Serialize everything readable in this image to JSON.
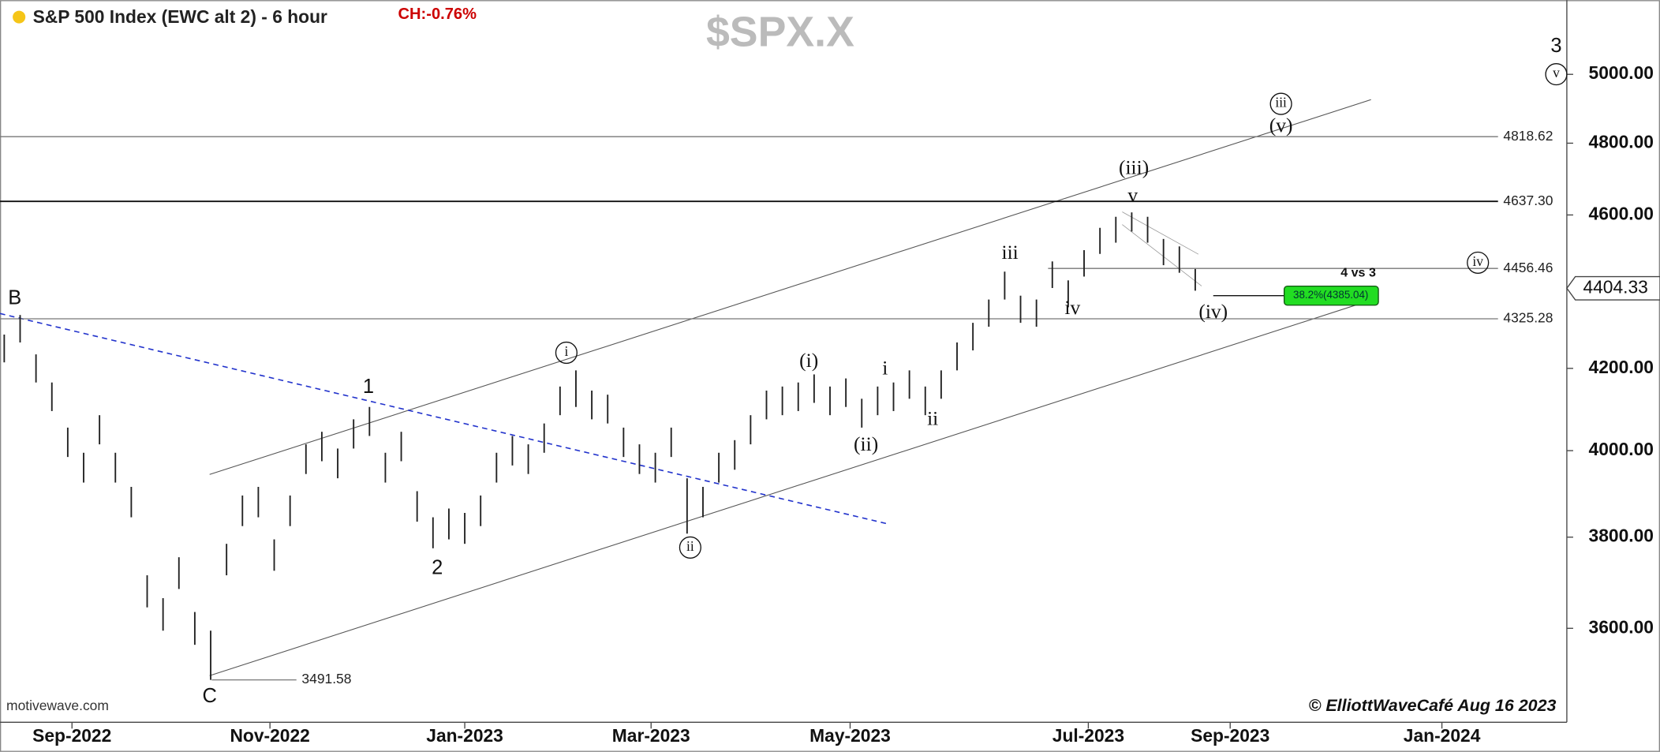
{
  "chart_data": {
    "type": "ohlc",
    "title": "S&P 500 Index (EWC alt 2) - 6 hour",
    "change": "CH:-0.76%",
    "watermark": "$SPX.X",
    "source": "motivewave.com",
    "copyright": "© ElliottWaveCafé Aug 16 2023",
    "log_scale": true,
    "ylim": [
      3405,
      5225
    ],
    "yticks": [
      {
        "value": 3600,
        "label": "3600.00"
      },
      {
        "value": 3800,
        "label": "3800.00"
      },
      {
        "value": 4000,
        "label": "4000.00"
      },
      {
        "value": 4200,
        "label": "4200.00"
      },
      {
        "value": 4600,
        "label": "4600.00"
      },
      {
        "value": 4800,
        "label": "4800.00"
      },
      {
        "value": 5000,
        "label": "5000.00"
      }
    ],
    "xticks": [
      "Sep-2022",
      "Nov-2022",
      "Jan-2023",
      "Mar-2023",
      "May-2023",
      "Jul-2023",
      "Sep-2023",
      "Jan-2024"
    ],
    "color": "#222222",
    "high": [
      4285,
      4335,
      4235,
      4165,
      4055,
      3995,
      4085,
      3995,
      3915,
      3715,
      3665,
      3755,
      3635,
      3595,
      3785,
      3895,
      3915,
      3795,
      3895,
      4015,
      4045,
      4005,
      4075,
      4105,
      3995,
      4045,
      3905,
      3845,
      3865,
      3855,
      3895,
      3995,
      4035,
      4015,
      4065,
      4155,
      4195,
      4145,
      4135,
      4055,
      4015,
      3995,
      4055,
      3935,
      3915,
      3995,
      4025,
      4085,
      4145,
      4155,
      4165,
      4185,
      4155,
      4175,
      4125,
      4155,
      4165,
      4195,
      4155,
      4195,
      4265,
      4315,
      4375,
      4448,
      4385,
      4375,
      4475,
      4425,
      4505,
      4565,
      4595,
      4607,
      4595,
      4535,
      4515,
      4455
    ],
    "low": [
      4215,
      4265,
      4165,
      4095,
      3985,
      3925,
      4015,
      3925,
      3845,
      3645,
      3595,
      3685,
      3565,
      3491.58,
      3715,
      3825,
      3845,
      3725,
      3825,
      3945,
      3975,
      3935,
      4005,
      4035,
      3925,
      3975,
      3835,
      3775,
      3795,
      3785,
      3825,
      3925,
      3965,
      3945,
      3995,
      4085,
      4105,
      4075,
      4065,
      3985,
      3945,
      3925,
      3985,
      3808,
      3845,
      3925,
      3955,
      4015,
      4075,
      4085,
      4095,
      4115,
      4085,
      4105,
      4055,
      4085,
      4095,
      4125,
      4085,
      4125,
      4195,
      4245,
      4305,
      4375,
      4315,
      4305,
      4405,
      4355,
      4435,
      4495,
      4525,
      4555,
      4525,
      4465,
      4445,
      4398
    ],
    "levels": [
      4818.62,
      {
        "value": 4637.3,
        "label": "4637.30"
      },
      4456.46,
      4325.28,
      3491.58
    ],
    "last_price": 4404.33,
    "fib_label": "38.2%(4385.04)",
    "fib_value": 4385.04,
    "annotations": [
      {
        "text": "B"
      },
      {
        "text": "C"
      },
      {
        "text": "1"
      },
      {
        "text": "2"
      },
      {
        "text": "i",
        "circled": true
      },
      {
        "text": "ii",
        "circled": true
      },
      {
        "text": "(i)"
      },
      {
        "text": "(ii)"
      },
      {
        "text": "i"
      },
      {
        "text": "ii"
      },
      {
        "text": "iii"
      },
      {
        "text": "iv"
      },
      {
        "text": "v"
      },
      {
        "text": "(iii)"
      },
      {
        "text": "(iv)"
      },
      {
        "text": "iii",
        "circled": true
      },
      {
        "text": "(v)"
      },
      {
        "text": "iv",
        "circled": true
      },
      {
        "text": "4 vs 3"
      },
      {
        "text": "3"
      },
      {
        "text": "v",
        "circled": true
      }
    ]
  }
}
